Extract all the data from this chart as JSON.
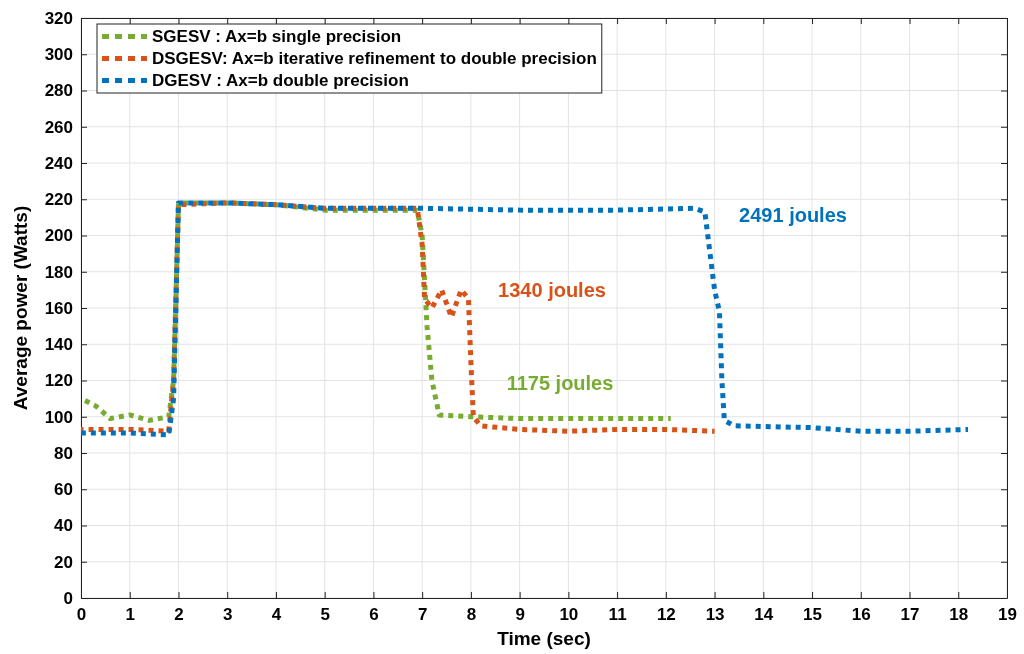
{
  "chart_data": {
    "type": "line",
    "xlabel": "Time (sec)",
    "ylabel": "Average power (Watts)",
    "xlim": [
      0,
      19
    ],
    "xticks": [
      0,
      1,
      2,
      3,
      4,
      5,
      6,
      7,
      8,
      9,
      10,
      11,
      12,
      13,
      14,
      15,
      16,
      17,
      18,
      19
    ],
    "ylim": [
      0,
      320
    ],
    "yticks": [
      0,
      20,
      40,
      60,
      80,
      100,
      120,
      140,
      160,
      180,
      200,
      220,
      240,
      260,
      280,
      300,
      320
    ],
    "grid": true,
    "legend": "top left",
    "line_style": "dotted",
    "marker": "none",
    "series": [
      {
        "name": "SGESV   : Ax=b single precision",
        "color": "#77ac30",
        "x": [
          0,
          0.3,
          0.6,
          1,
          1.4,
          1.8,
          1.9,
          2.0,
          2.5,
          3,
          4,
          5,
          6,
          6.9,
          7.0,
          7.1,
          7.2,
          7.35,
          8,
          9,
          10,
          11,
          12.1
        ],
        "values": [
          110,
          106,
          99,
          101,
          98,
          100,
          120,
          218,
          218,
          218,
          217,
          214,
          214,
          214,
          200,
          150,
          120,
          101,
          100,
          99,
          99,
          99,
          99
        ]
      },
      {
        "name": "DSGESV: Ax=b iterative refinement to double precision",
        "color": "#d95319",
        "x": [
          0,
          1,
          1.8,
          1.9,
          2.0,
          3,
          4,
          5,
          6,
          6.9,
          7.0,
          7.05,
          7.2,
          7.4,
          7.6,
          7.8,
          7.95,
          8.0,
          8.05,
          8.2,
          9,
          10,
          11,
          12,
          13
        ],
        "values": [
          93,
          93,
          92,
          120,
          217,
          218,
          217,
          215,
          215,
          215,
          195,
          165,
          160,
          170,
          155,
          170,
          165,
          130,
          100,
          95,
          93,
          92,
          93,
          93,
          92
        ]
      },
      {
        "name": "DGESV   : Ax=b double precision",
        "color": "#0072bd",
        "x": [
          0,
          1,
          1.8,
          1.9,
          2.0,
          3,
          4,
          5,
          7,
          9,
          11,
          12.6,
          12.8,
          13.0,
          13.1,
          13.15,
          13.2,
          13.4,
          15,
          16,
          17,
          18.2
        ],
        "values": [
          91,
          91,
          90,
          110,
          218,
          218,
          217,
          215,
          215,
          214,
          214,
          215,
          213,
          170,
          158,
          120,
          98,
          95,
          94,
          92,
          92,
          93
        ]
      }
    ],
    "annotations": [
      "1175 joules",
      "1340 joules",
      "2491 joules"
    ]
  }
}
